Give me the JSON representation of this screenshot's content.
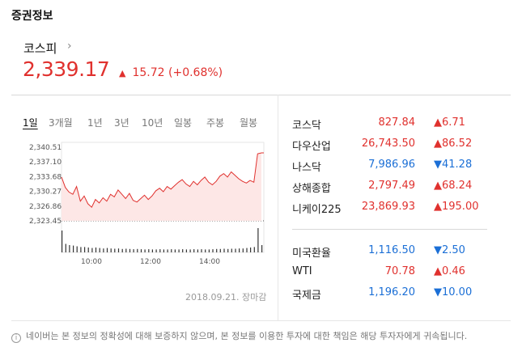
{
  "section_title": "증권정보",
  "main_index": {
    "name": "코스피",
    "chevron": "›",
    "value": "2,339.17",
    "change": "15.72 (+0.68%)",
    "direction": "up"
  },
  "period_tabs": [
    "1일",
    "3개월",
    "1년",
    "3년",
    "10년",
    "일봉",
    "주봉",
    "월봉"
  ],
  "active_tab": "1일",
  "chart_data": {
    "type": "area",
    "y_ticks": [
      "2,340.51",
      "2,337.10",
      "2,333.68",
      "2,330.27",
      "2,326.86",
      "2,323.45"
    ],
    "ylim": [
      2323.45,
      2340.51
    ],
    "x_ticks": [
      "10:00",
      "12:00",
      "14:00"
    ],
    "x_range": [
      "09:00",
      "15:30"
    ],
    "line_color": "#e0312e",
    "fill_color": "#fde7e6",
    "series": [
      {
        "values": [
          2333.6,
          2331.2,
          2330.1,
          2329.6,
          2331.4,
          2328.0,
          2329.2,
          2327.4,
          2326.6,
          2328.4,
          2327.6,
          2328.8,
          2328.0,
          2329.6,
          2329.0,
          2330.6,
          2329.6,
          2328.6,
          2329.8,
          2328.2,
          2327.8,
          2328.6,
          2329.4,
          2328.4,
          2329.2,
          2330.4,
          2331.0,
          2330.2,
          2331.4,
          2330.8,
          2331.6,
          2332.4,
          2333.0,
          2332.0,
          2331.4,
          2332.6,
          2331.8,
          2332.8,
          2333.6,
          2332.4,
          2331.8,
          2332.6,
          2333.8,
          2334.4,
          2333.6,
          2334.8,
          2334.0,
          2333.2,
          2332.6,
          2332.2,
          2332.8,
          2332.4,
          2339.0,
          2339.2
        ]
      }
    ],
    "volume_bars": [
      0.9,
      0.35,
      0.3,
      0.28,
      0.25,
      0.22,
      0.22,
      0.2,
      0.18,
      0.2,
      0.18,
      0.16,
      0.18,
      0.16,
      0.15,
      0.16,
      0.14,
      0.15,
      0.14,
      0.13,
      0.14,
      0.13,
      0.12,
      0.13,
      0.12,
      0.12,
      0.13,
      0.12,
      0.12,
      0.13,
      0.12,
      0.12,
      0.13,
      0.12,
      0.12,
      0.13,
      0.12,
      0.13,
      0.12,
      0.12,
      0.13,
      0.14,
      0.14,
      0.15,
      0.14,
      0.15,
      0.15,
      0.16,
      0.16,
      0.18,
      0.2,
      0.22,
      1.0,
      0.3
    ],
    "grid": false
  },
  "chart_date": "2018.09.21. 장마감",
  "markets": [
    {
      "name": "코스닥",
      "price": "827.84",
      "change": "▲6.71",
      "direction": "up"
    },
    {
      "name": "다우산업",
      "price": "26,743.50",
      "change": "▲86.52",
      "direction": "up"
    },
    {
      "name": "나스닥",
      "price": "7,986.96",
      "change": "▼41.28",
      "direction": "down"
    },
    {
      "name": "상해종합",
      "price": "2,797.49",
      "change": "▲68.24",
      "direction": "up"
    },
    {
      "name": "니케이225",
      "price": "23,869.93",
      "change": "▲195.00",
      "direction": "up"
    }
  ],
  "fx": [
    {
      "name": "미국환율",
      "price": "1,116.50",
      "change": "▼2.50",
      "direction": "down"
    },
    {
      "name": "WTI",
      "price": "70.78",
      "change": "▲0.46",
      "direction": "up"
    },
    {
      "name": "국제금",
      "price": "1,196.20",
      "change": "▼10.00",
      "direction": "down"
    }
  ],
  "notice": "네이버는 본 정보의 정확성에 대해 보증하지 않으며, 본 정보를 이용한 투자에 대한 책임은 해당 투자자에게 귀속됩니다.",
  "notice_icon": "i",
  "colors": {
    "up": "#e0312e",
    "down": "#1b6fd6"
  }
}
